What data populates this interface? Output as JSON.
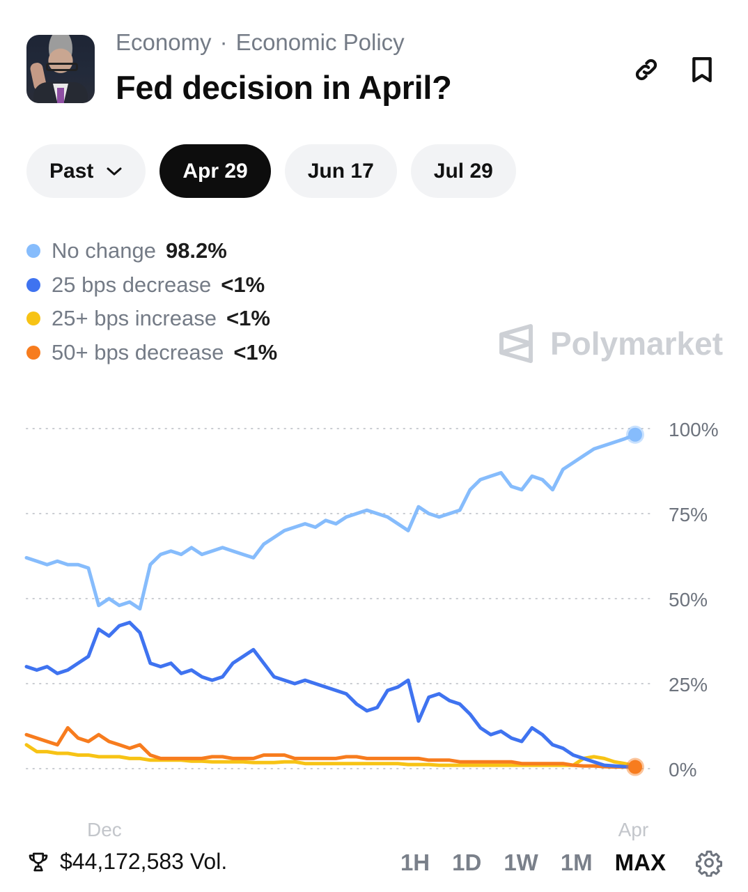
{
  "header": {
    "category": "Economy",
    "separator": "·",
    "subcategory": "Economic Policy",
    "title": "Fed decision in April?",
    "icons": {
      "link": "link-icon",
      "bookmark": "bookmark-icon"
    }
  },
  "date_pills": [
    {
      "label": "Past",
      "has_dropdown": true,
      "active": false
    },
    {
      "label": "Apr 29",
      "active": true
    },
    {
      "label": "Jun 17",
      "active": false
    },
    {
      "label": "Jul 29",
      "active": false
    }
  ],
  "legend": [
    {
      "label": "No change",
      "value": "98.2%",
      "color": "#86bcfc"
    },
    {
      "label": "25 bps decrease",
      "value": "<1%",
      "color": "#3f73f0"
    },
    {
      "label": "25+ bps increase",
      "value": "<1%",
      "color": "#f7c315"
    },
    {
      "label": "50+ bps decrease",
      "value": "<1%",
      "color": "#f77c1e"
    }
  ],
  "watermark": "Polymarket",
  "footer": {
    "volume": "$44,172,583 Vol.",
    "ranges": [
      "1H",
      "1D",
      "1W",
      "1M",
      "MAX"
    ],
    "active_range": "MAX",
    "settings_icon": "gear-icon",
    "volume_icon": "trophy-icon"
  },
  "chart_data": {
    "type": "line",
    "title": "",
    "xlabel": "",
    "ylabel": "",
    "ylim": [
      0,
      100
    ],
    "y_ticks": [
      "100%",
      "75%",
      "50%",
      "25%",
      "0%"
    ],
    "y_tick_values": [
      100,
      75,
      50,
      25,
      0
    ],
    "x_tick_labels": [
      {
        "label": "Dec",
        "t": 0.128
      },
      {
        "label": "Apr",
        "t": 0.997
      }
    ],
    "grid": true,
    "legend_position": "top-left",
    "x_count": 60,
    "series": [
      {
        "name": "No change",
        "color": "#86bcfc",
        "values": [
          62,
          61,
          60,
          61,
          60,
          60,
          59,
          48,
          50,
          48,
          49,
          47,
          60,
          63,
          64,
          63,
          65,
          63,
          64,
          65,
          64,
          63,
          62,
          66,
          68,
          70,
          71,
          72,
          71,
          73,
          72,
          74,
          75,
          76,
          75,
          74,
          72,
          70,
          77,
          75,
          74,
          75,
          76,
          82,
          85,
          86,
          87,
          83,
          82,
          86,
          85,
          82,
          88,
          90,
          92,
          94,
          95,
          96,
          97,
          98.2
        ]
      },
      {
        "name": "25 bps decrease",
        "color": "#3f73f0",
        "values": [
          30,
          29,
          30,
          28,
          29,
          31,
          33,
          41,
          39,
          42,
          43,
          40,
          31,
          30,
          31,
          28,
          29,
          27,
          26,
          27,
          31,
          33,
          35,
          31,
          27,
          26,
          25,
          26,
          25,
          24,
          23,
          22,
          19,
          17,
          18,
          23,
          24,
          26,
          14,
          21,
          22,
          20,
          19,
          16,
          12,
          10,
          11,
          9,
          8,
          12,
          10,
          7,
          6,
          4,
          3,
          2,
          1,
          0.8,
          0.6,
          0.5
        ]
      },
      {
        "name": "25+ bps increase",
        "color": "#f7c315",
        "values": [
          7,
          5,
          5,
          4.5,
          4.5,
          4,
          4,
          3.5,
          3.5,
          3.5,
          3,
          3,
          2.5,
          2.5,
          2.5,
          2.5,
          2.2,
          2.2,
          2,
          2,
          2,
          2,
          1.8,
          1.8,
          1.8,
          2,
          2,
          1.5,
          1.5,
          1.5,
          1.5,
          1.5,
          1.5,
          1.5,
          1.5,
          1.5,
          1.5,
          1.2,
          1.2,
          1.2,
          1,
          1,
          1,
          1,
          1,
          1,
          1,
          1,
          1,
          1,
          1,
          1,
          1,
          1,
          3,
          3.5,
          3,
          2,
          1.5,
          0.8
        ]
      },
      {
        "name": "50+ bps decrease",
        "color": "#f77c1e",
        "values": [
          10,
          9,
          8,
          7,
          12,
          9,
          8,
          10,
          8,
          7,
          6,
          7,
          4,
          3,
          3,
          3,
          3,
          3,
          3.5,
          3.5,
          3,
          3,
          3,
          4,
          4,
          4,
          3,
          3,
          3,
          3,
          3,
          3.5,
          3.5,
          3,
          3,
          3,
          3,
          3,
          3,
          2.5,
          2.5,
          2.5,
          2,
          2,
          2,
          2,
          2,
          2,
          1.5,
          1.5,
          1.5,
          1.5,
          1.5,
          1,
          0.8,
          0.8,
          0.6,
          0.5,
          0.5,
          0.5
        ]
      }
    ]
  }
}
